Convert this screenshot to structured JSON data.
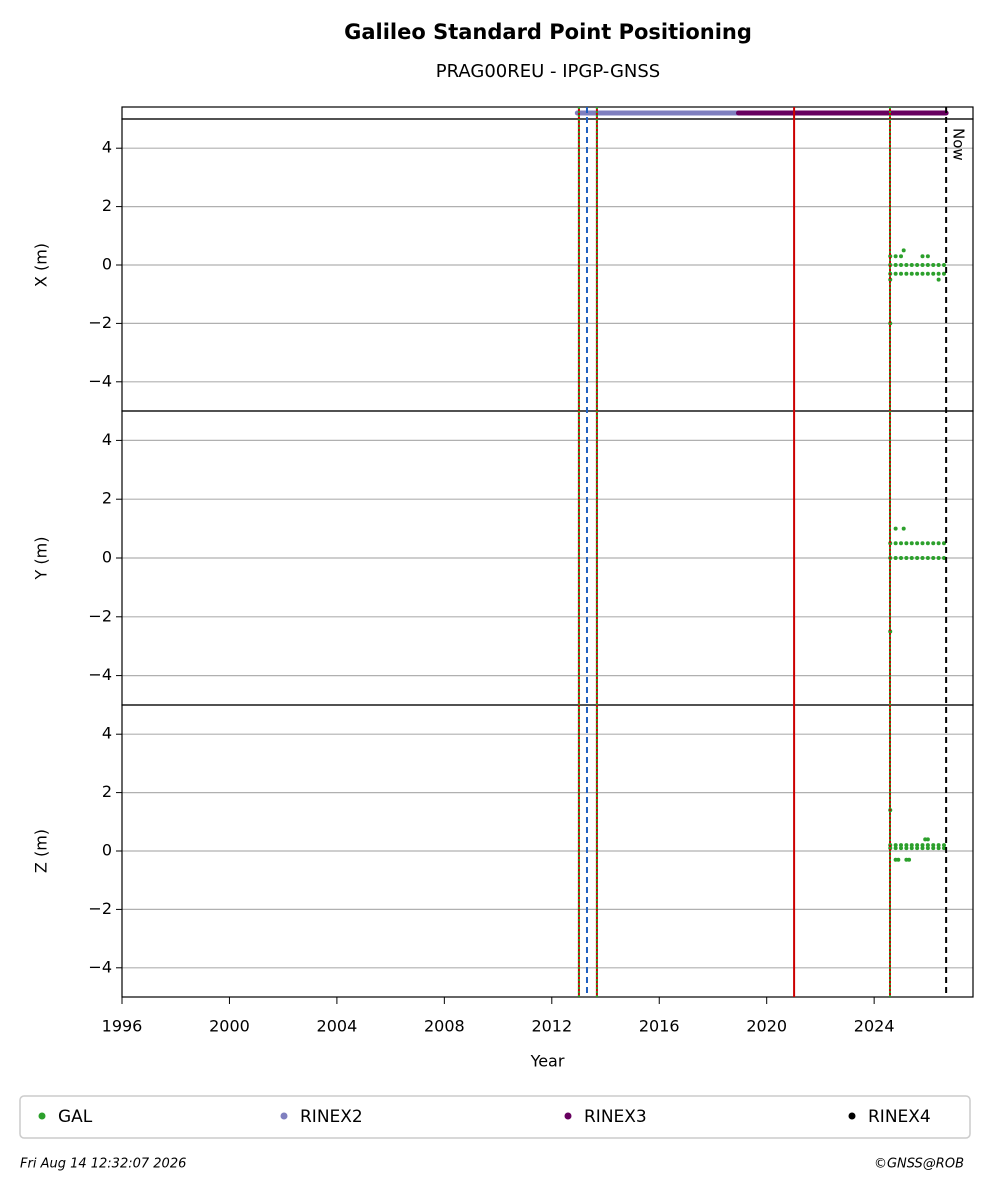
{
  "title": "Galileo Standard Point Positioning",
  "subtitle": "PRAG00REU - IPGP-GNSS",
  "chart_data": [
    {
      "type": "timeline",
      "series": [
        {
          "name": "RINEX2",
          "color": "#7f7fbf",
          "ranges": [
            [
              2012.95,
              2018.95
            ]
          ]
        },
        {
          "name": "RINEX3",
          "color": "#67005f",
          "ranges": [
            [
              2018.95,
              2026.68
            ]
          ]
        },
        {
          "name": "RINEX4",
          "color": "#000000",
          "ranges": []
        }
      ],
      "markers": [
        {
          "x": 2013.01,
          "color": "#cc0000",
          "overlay": "#2ca02c"
        },
        {
          "x": 2013.31,
          "color": "#1f5fbf",
          "dash": true
        },
        {
          "x": 2013.68,
          "color": "#cc0000",
          "overlay": "#2ca02c"
        },
        {
          "x": 2021.02,
          "color": "#cc0000"
        },
        {
          "x": 2024.59,
          "color": "#cc0000",
          "overlay": "#2ca02c"
        }
      ],
      "now": {
        "x": 2026.68,
        "label": "Now"
      }
    },
    {
      "type": "scatter",
      "ylabel": "X (m)",
      "ylim": [
        -5,
        5
      ],
      "yticks": [
        -4,
        -2,
        0,
        2,
        4
      ],
      "grid": true,
      "series": [
        {
          "name": "GAL",
          "color": "#2ca02c",
          "x": [
            2024.6,
            2024.8,
            2025.0,
            2025.2,
            2025.4,
            2025.6,
            2025.8,
            2026.0,
            2026.2,
            2026.4,
            2026.6,
            2024.6,
            2024.8,
            2025.0,
            2025.2,
            2025.4,
            2025.6,
            2025.8,
            2026.0,
            2026.2,
            2026.4,
            2026.6,
            2024.6,
            2024.8,
            2025.0,
            2025.8,
            2026.0,
            2025.1,
            2024.6,
            2026.4,
            2024.6
          ],
          "values": [
            0,
            0,
            0,
            0,
            0,
            0,
            0,
            0,
            0,
            0,
            0,
            -0.3,
            -0.3,
            -0.3,
            -0.3,
            -0.3,
            -0.3,
            -0.3,
            -0.3,
            -0.3,
            -0.3,
            -0.3,
            0.3,
            0.3,
            0.3,
            0.3,
            0.3,
            0.5,
            -0.5,
            -0.5,
            -2
          ]
        }
      ]
    },
    {
      "type": "scatter",
      "ylabel": "Y (m)",
      "ylim": [
        -5,
        5
      ],
      "yticks": [
        -4,
        -2,
        0,
        2,
        4
      ],
      "grid": true,
      "series": [
        {
          "name": "GAL",
          "color": "#2ca02c",
          "x": [
            2024.6,
            2024.8,
            2025.0,
            2025.2,
            2025.4,
            2025.6,
            2025.8,
            2026.0,
            2026.2,
            2026.4,
            2026.6,
            2024.6,
            2024.8,
            2025.0,
            2025.2,
            2025.4,
            2025.6,
            2025.8,
            2026.0,
            2026.2,
            2026.4,
            2026.6,
            2024.8,
            2025.1,
            2024.6
          ],
          "values": [
            0,
            0,
            0,
            0,
            0,
            0,
            0,
            0,
            0,
            0,
            0,
            0.5,
            0.5,
            0.5,
            0.5,
            0.5,
            0.5,
            0.5,
            0.5,
            0.5,
            0.5,
            0.5,
            1,
            1,
            -2.5
          ]
        }
      ]
    },
    {
      "type": "scatter",
      "ylabel": "Z (m)",
      "xlabel": "Year",
      "ylim": [
        -5,
        5
      ],
      "yticks": [
        -4,
        -2,
        0,
        2,
        4
      ],
      "grid": true,
      "xlim": [
        1996,
        2027.68
      ],
      "xticks": [
        1996,
        2000,
        2004,
        2008,
        2012,
        2016,
        2020,
        2024
      ],
      "series": [
        {
          "name": "GAL",
          "color": "#2ca02c",
          "x": [
            2024.6,
            2024.8,
            2025.0,
            2025.2,
            2025.4,
            2025.6,
            2025.8,
            2026.0,
            2026.2,
            2026.4,
            2026.6,
            2024.6,
            2024.8,
            2025.0,
            2025.2,
            2025.4,
            2025.6,
            2025.8,
            2026.0,
            2026.2,
            2026.4,
            2026.6,
            2024.8,
            2024.9,
            2025.2,
            2025.3,
            2025.9,
            2026.0,
            2024.6
          ],
          "values": [
            0.1,
            0.1,
            0.1,
            0.1,
            0.1,
            0.1,
            0.1,
            0.1,
            0.1,
            0.1,
            0.1,
            0.2,
            0.2,
            0.2,
            0.2,
            0.2,
            0.2,
            0.2,
            0.2,
            0.2,
            0.2,
            0.2,
            -0.3,
            -0.3,
            -0.3,
            -0.3,
            0.4,
            0.4,
            1.4
          ]
        }
      ]
    }
  ],
  "footer": {
    "timestamp": "Fri Aug 14 12:32:07 2026",
    "copyright": "©GNSS@ROB"
  }
}
